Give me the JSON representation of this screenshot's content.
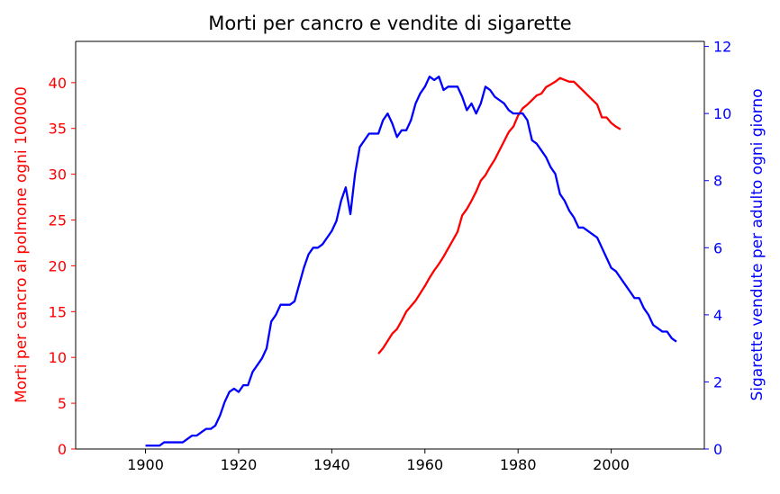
{
  "chart_data": {
    "type": "line",
    "title": "Morti per cancro e vendite di sigarette",
    "x_axis": {
      "range": [
        1885,
        2020
      ],
      "ticks": [
        1900,
        1920,
        1940,
        1960,
        1980,
        2000
      ],
      "tick_labels": [
        "1900",
        "1920",
        "1940",
        "1960",
        "1980",
        "2000"
      ]
    },
    "y_left": {
      "label": "Morti per cancro al polmone ogni 100000",
      "color": "#ff0000",
      "range": [
        0,
        44.5
      ],
      "ticks": [
        0,
        5,
        10,
        15,
        20,
        25,
        30,
        35,
        40
      ],
      "tick_labels": [
        "0",
        "5",
        "10",
        "15",
        "20",
        "25",
        "30",
        "35",
        "40"
      ]
    },
    "y_right": {
      "label": "Sigarette vendute per adulto ogni giorno",
      "color": "#0000ff",
      "range": [
        0,
        12.15
      ],
      "ticks": [
        0,
        2,
        4,
        6,
        8,
        10,
        12
      ],
      "tick_labels": [
        "0",
        "2",
        "4",
        "6",
        "8",
        "10",
        "12"
      ]
    },
    "series": [
      {
        "name": "Morti per cancro al polmone",
        "axis": "left",
        "color": "#ff0000",
        "x": [
          1950,
          1951,
          1952,
          1953,
          1954,
          1955,
          1956,
          1957,
          1958,
          1959,
          1960,
          1961,
          1962,
          1963,
          1964,
          1965,
          1966,
          1967,
          1968,
          1969,
          1970,
          1971,
          1972,
          1973,
          1974,
          1975,
          1976,
          1977,
          1978,
          1979,
          1980,
          1981,
          1982,
          1983,
          1984,
          1985,
          1986,
          1987,
          1988,
          1989,
          1990,
          1991,
          1992,
          1993,
          1994,
          1995,
          1996,
          1997,
          1998,
          1999,
          2000,
          2001,
          2002
        ],
        "y": [
          10.4,
          11.0,
          11.8,
          12.6,
          13.1,
          14.0,
          15.0,
          15.6,
          16.2,
          17.0,
          17.8,
          18.7,
          19.5,
          20.2,
          21.0,
          21.9,
          22.8,
          23.7,
          25.5,
          26.2,
          27.1,
          28.1,
          29.3,
          29.9,
          30.8,
          31.6,
          32.6,
          33.6,
          34.6,
          35.2,
          36.4,
          37.2,
          37.6,
          38.1,
          38.6,
          38.8,
          39.5,
          39.8,
          40.1,
          40.5,
          40.3,
          40.1,
          40.1,
          39.6,
          39.1,
          38.6,
          38.1,
          37.6,
          36.2,
          36.2,
          35.6,
          35.2,
          34.9
        ]
      },
      {
        "name": "Sigarette vendute per adulto",
        "axis": "right",
        "color": "#0000ff",
        "x": [
          1900,
          1901,
          1902,
          1903,
          1904,
          1905,
          1906,
          1907,
          1908,
          1909,
          1910,
          1911,
          1912,
          1913,
          1914,
          1915,
          1916,
          1917,
          1918,
          1919,
          1920,
          1921,
          1922,
          1923,
          1924,
          1925,
          1926,
          1927,
          1928,
          1929,
          1930,
          1931,
          1932,
          1933,
          1934,
          1935,
          1936,
          1937,
          1938,
          1939,
          1940,
          1941,
          1942,
          1943,
          1944,
          1945,
          1946,
          1947,
          1948,
          1949,
          1950,
          1951,
          1952,
          1953,
          1954,
          1955,
          1956,
          1957,
          1958,
          1959,
          1960,
          1961,
          1962,
          1963,
          1964,
          1965,
          1966,
          1967,
          1968,
          1969,
          1970,
          1971,
          1972,
          1973,
          1974,
          1975,
          1976,
          1977,
          1978,
          1979,
          1980,
          1981,
          1982,
          1983,
          1984,
          1985,
          1986,
          1987,
          1988,
          1989,
          1990,
          1991,
          1992,
          1993,
          1994,
          1995,
          1996,
          1997,
          1998,
          1999,
          2000,
          2001,
          2002,
          2003,
          2004,
          2005,
          2006,
          2007,
          2008,
          2009,
          2010,
          2011,
          2012,
          2013,
          2014
        ],
        "y": [
          0.1,
          0.1,
          0.1,
          0.1,
          0.2,
          0.2,
          0.2,
          0.2,
          0.2,
          0.3,
          0.4,
          0.4,
          0.5,
          0.6,
          0.6,
          0.7,
          1.0,
          1.4,
          1.7,
          1.8,
          1.7,
          1.9,
          1.9,
          2.3,
          2.5,
          2.7,
          3.0,
          3.8,
          4.0,
          4.3,
          4.3,
          4.3,
          4.4,
          4.9,
          5.4,
          5.8,
          6.0,
          6.0,
          6.1,
          6.3,
          6.5,
          6.8,
          7.4,
          7.8,
          7.0,
          8.2,
          9.0,
          9.2,
          9.4,
          9.4,
          9.4,
          9.8,
          10.0,
          9.7,
          9.3,
          9.5,
          9.5,
          9.8,
          10.3,
          10.6,
          10.8,
          11.1,
          11.0,
          11.1,
          10.7,
          10.8,
          10.8,
          10.8,
          10.5,
          10.1,
          10.3,
          10.0,
          10.3,
          10.8,
          10.7,
          10.5,
          10.4,
          10.3,
          10.1,
          10.0,
          10.0,
          10.0,
          9.8,
          9.2,
          9.1,
          8.9,
          8.7,
          8.4,
          8.2,
          7.6,
          7.4,
          7.1,
          6.9,
          6.6,
          6.6,
          6.5,
          6.4,
          6.3,
          6.0,
          5.7,
          5.4,
          5.3,
          5.1,
          4.9,
          4.7,
          4.5,
          4.5,
          4.2,
          4.0,
          3.7,
          3.6,
          3.5,
          3.5,
          3.3,
          3.2
        ]
      }
    ]
  }
}
